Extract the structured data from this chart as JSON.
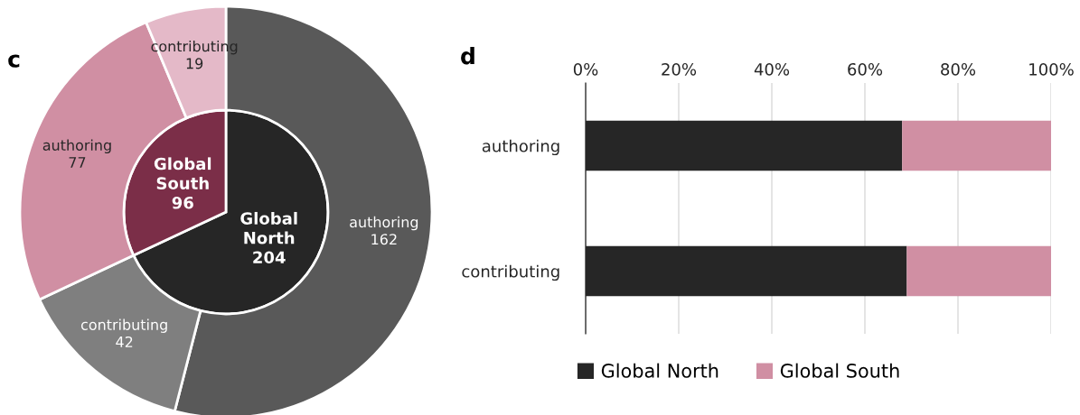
{
  "chart_data": [
    {
      "type": "donut",
      "title": "c",
      "series": [
        {
          "values": [
            204,
            96
          ],
          "colors": [
            "#262626",
            "#7b2e48"
          ],
          "value_labels": [
            "Global\nNorth\n204",
            "Global\nSouth\n96"
          ]
        },
        {
          "values": [
            162,
            42,
            77,
            19
          ],
          "colors": [
            "#595959",
            "#7f7f7f",
            "#d08fa3",
            "#e4b9c8"
          ],
          "value_labels": [
            "authoring\n162",
            "contributing\n42",
            "authoring\n77",
            "contributing\n19"
          ]
        }
      ]
    },
    {
      "type": "bar",
      "title": "d",
      "orientation": "horizontal",
      "stacked": true,
      "categories": [
        "authoring",
        "contributing"
      ],
      "series": [
        {
          "name": "Global North",
          "color": "#262626",
          "values": [
            68,
            69
          ]
        },
        {
          "name": "Global South",
          "color": "#d08fa3",
          "values": [
            32,
            31
          ]
        }
      ],
      "xlim": [
        0,
        100
      ],
      "xticks": [
        {
          "value": 0,
          "label": "0%"
        },
        {
          "value": 20,
          "label": "20%"
        },
        {
          "value": 40,
          "label": "40%"
        },
        {
          "value": 60,
          "label": "60%"
        },
        {
          "value": 80,
          "label": "80%"
        },
        {
          "value": 100,
          "label": "100%"
        }
      ],
      "grid": "x",
      "legend": "bottom"
    }
  ]
}
